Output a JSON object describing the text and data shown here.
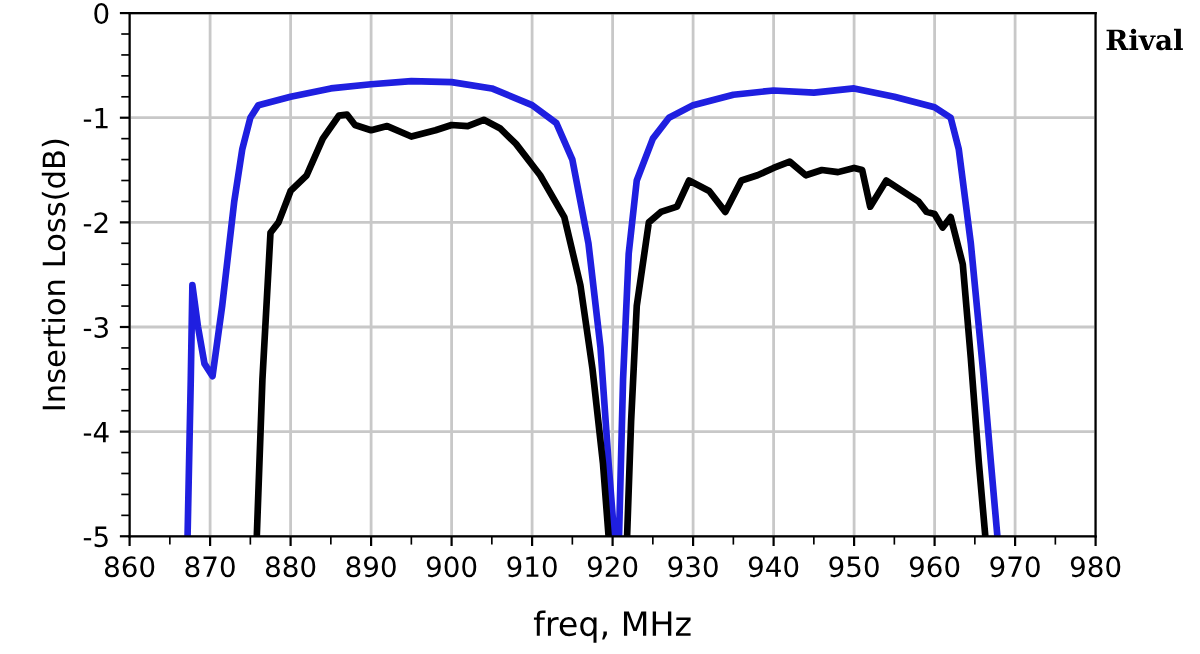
{
  "chart_data": {
    "type": "line",
    "xlabel": "freq, MHz",
    "ylabel": "Insertion Loss(dB)",
    "xlim": [
      860,
      980
    ],
    "ylim": [
      -5,
      0
    ],
    "xticks": [
      860,
      {
        "value": 865,
        "label": null
      },
      870,
      {
        "value": 875,
        "label": null
      },
      880,
      {
        "value": 885,
        "label": null
      },
      890,
      {
        "value": 895,
        "label": null
      },
      900,
      {
        "value": 905,
        "label": null
      },
      910,
      {
        "value": 915,
        "label": null
      },
      920,
      {
        "value": 925,
        "label": null
      },
      930,
      {
        "value": 935,
        "label": null
      },
      940,
      {
        "value": 945,
        "label": null
      },
      950,
      {
        "value": 955,
        "label": null
      },
      960,
      {
        "value": 965,
        "label": null
      },
      970,
      {
        "value": 975,
        "label": null
      },
      980
    ],
    "yticks": [
      -5,
      {
        "value": -4.8,
        "label": null
      },
      {
        "value": -4.6,
        "label": null
      },
      {
        "value": -4.4,
        "label": null
      },
      {
        "value": -4.2,
        "label": null
      },
      -4,
      {
        "value": -3.8,
        "label": null
      },
      {
        "value": -3.6,
        "label": null
      },
      {
        "value": -3.4,
        "label": null
      },
      {
        "value": -3.2,
        "label": null
      },
      -3,
      {
        "value": -2.8,
        "label": null
      },
      {
        "value": -2.6,
        "label": null
      },
      {
        "value": -2.4,
        "label": null
      },
      {
        "value": -2.2,
        "label": null
      },
      -2,
      {
        "value": -1.8,
        "label": null
      },
      {
        "value": -1.6,
        "label": null
      },
      {
        "value": -1.4,
        "label": null
      },
      {
        "value": -1.2,
        "label": null
      },
      -1,
      {
        "value": -0.8,
        "label": null
      },
      {
        "value": -0.6,
        "label": null
      },
      {
        "value": -0.4,
        "label": null
      },
      {
        "value": -0.2,
        "label": null
      },
      0
    ],
    "grid": true,
    "legend": "right",
    "marker": "none",
    "line_style": "solid",
    "series": [
      {
        "color": "#1f1fe0",
        "x": [
          867.2,
          867.6,
          867.8,
          868.5,
          869.3,
          870.3,
          871.5,
          873,
          874,
          875,
          876,
          880,
          885,
          890,
          895,
          900,
          905,
          910,
          913,
          915,
          917,
          918.5,
          919.5,
          920.2,
          920.5,
          920.8,
          921.3,
          922,
          923,
          925,
          927,
          930,
          935,
          940,
          945,
          950,
          955,
          960,
          962,
          963,
          964.5,
          966,
          967,
          967.8
        ],
        "values": [
          -5,
          -3.5,
          -2.6,
          -3.0,
          -3.35,
          -3.47,
          -2.8,
          -1.8,
          -1.3,
          -1.0,
          -0.88,
          -0.8,
          -0.72,
          -0.68,
          -0.65,
          -0.66,
          -0.72,
          -0.88,
          -1.05,
          -1.4,
          -2.2,
          -3.2,
          -4.3,
          -5,
          null,
          -5,
          -3.5,
          -2.3,
          -1.6,
          -1.2,
          -1.0,
          -0.88,
          -0.78,
          -0.74,
          -0.76,
          -0.72,
          -0.8,
          -0.9,
          -1.0,
          -1.3,
          -2.2,
          -3.4,
          -4.3,
          -5
        ]
      },
      {
        "name": "Rival",
        "color": "#000000",
        "x": [
          875.8,
          876.5,
          877.5,
          878.5,
          880,
          882,
          884,
          886,
          887,
          888,
          890,
          892,
          895,
          898,
          900,
          902,
          904,
          906,
          908,
          911,
          914,
          916,
          917.5,
          918.8,
          919.5,
          920.5,
          921.8,
          922.3,
          923,
          924.5,
          926,
          928,
          929.5,
          932,
          934,
          936,
          938,
          940,
          942,
          944,
          946,
          948,
          950,
          951,
          952,
          954,
          956,
          958,
          959,
          960,
          961,
          962,
          963.5,
          964.5,
          965.5,
          966.3
        ],
        "values": [
          -5,
          -3.5,
          -2.1,
          -2.0,
          -1.7,
          -1.55,
          -1.2,
          -0.98,
          -0.97,
          -1.07,
          -1.12,
          -1.08,
          -1.18,
          -1.12,
          -1.07,
          -1.08,
          -1.02,
          -1.1,
          -1.25,
          -1.55,
          -1.95,
          -2.6,
          -3.4,
          -4.3,
          -5,
          null,
          -5,
          -3.9,
          -2.8,
          -2.0,
          -1.9,
          -1.85,
          -1.6,
          -1.7,
          -1.9,
          -1.6,
          -1.55,
          -1.48,
          -1.42,
          -1.55,
          -1.5,
          -1.52,
          -1.48,
          -1.5,
          -1.85,
          -1.6,
          -1.7,
          -1.8,
          -1.9,
          -1.92,
          -2.05,
          -1.95,
          -2.4,
          -3.3,
          -4.3,
          -5
        ]
      }
    ]
  }
}
